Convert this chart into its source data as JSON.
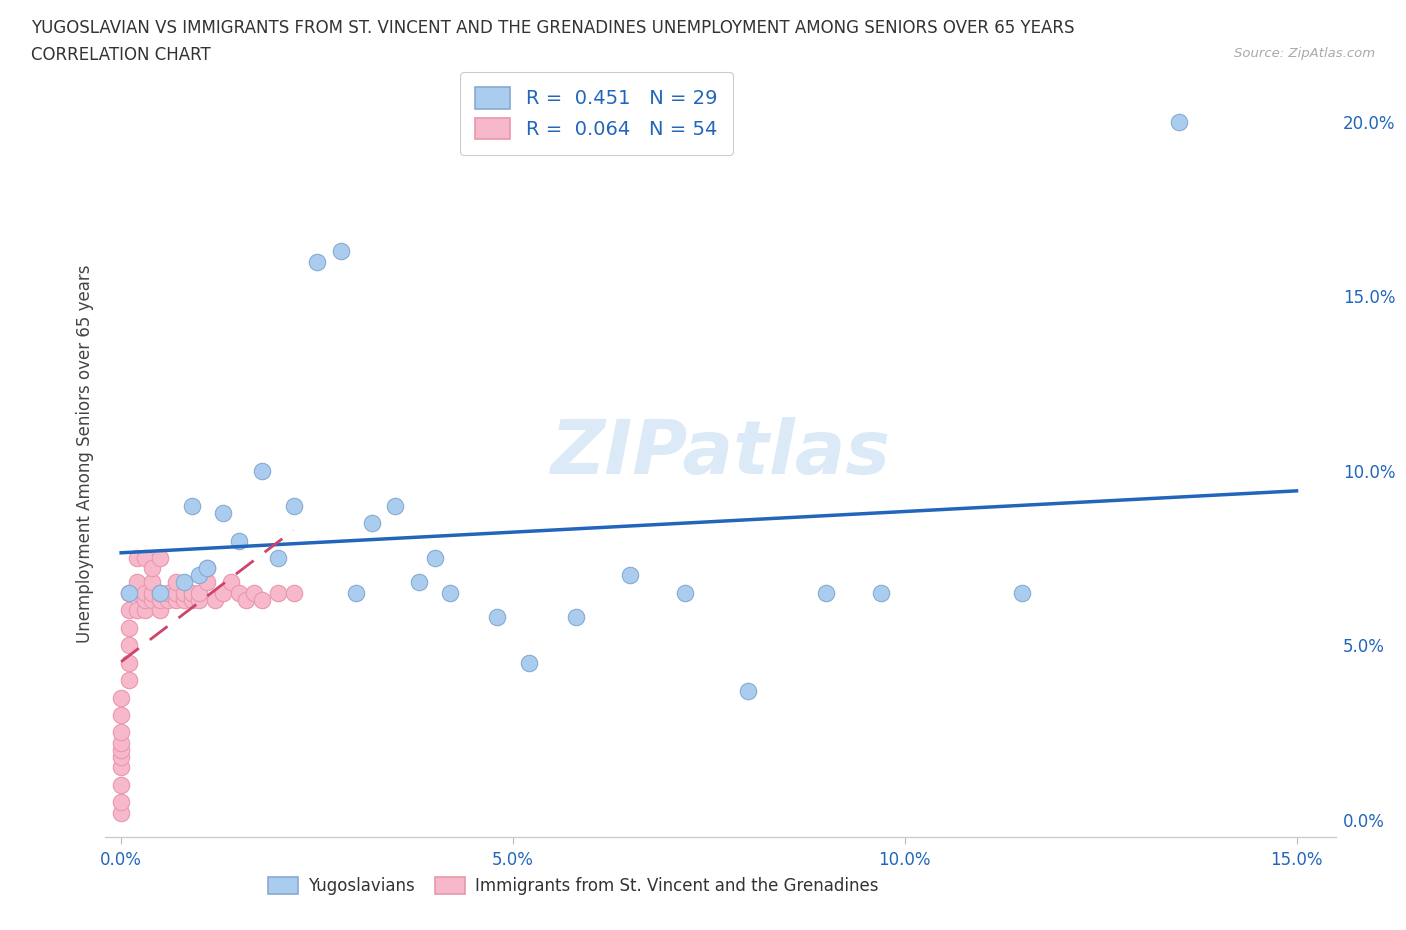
{
  "title_line1": "YUGOSLAVIAN VS IMMIGRANTS FROM ST. VINCENT AND THE GRENADINES UNEMPLOYMENT AMONG SENIORS OVER 65 YEARS",
  "title_line2": "CORRELATION CHART",
  "source": "Source: ZipAtlas.com",
  "ylabel": "Unemployment Among Seniors over 65 years",
  "xlim": [
    -0.002,
    0.155
  ],
  "ylim": [
    -0.005,
    0.215
  ],
  "ytick_vals": [
    0.0,
    0.05,
    0.1,
    0.15,
    0.2
  ],
  "xtick_vals": [
    0.0,
    0.05,
    0.1,
    0.15
  ],
  "yug_r": "0.451",
  "yug_n": "29",
  "svg_r": "0.064",
  "svg_n": "54",
  "yug_dot_color": "#aaccee",
  "yug_edge_color": "#88aad0",
  "svg_dot_color": "#f8b8cc",
  "svg_edge_color": "#e898aa",
  "yug_line_color": "#2266bb",
  "svg_line_color": "#cc4466",
  "watermark": "ZIPatlas",
  "watermark_color": "#c0d8f0",
  "legend1_label": "R =  0.451   N = 29",
  "legend2_label": "R =  0.064   N = 54",
  "bottom_label1": "Yugoslavians",
  "bottom_label2": "Immigrants from St. Vincent and the Grenadines",
  "yug_x": [
    0.001,
    0.005,
    0.008,
    0.009,
    0.01,
    0.011,
    0.013,
    0.015,
    0.018,
    0.02,
    0.022,
    0.025,
    0.028,
    0.03,
    0.032,
    0.035,
    0.038,
    0.04,
    0.042,
    0.048,
    0.052,
    0.058,
    0.065,
    0.072,
    0.08,
    0.09,
    0.097,
    0.115,
    0.135
  ],
  "yug_y": [
    0.065,
    0.065,
    0.068,
    0.09,
    0.07,
    0.072,
    0.088,
    0.08,
    0.1,
    0.075,
    0.09,
    0.16,
    0.163,
    0.065,
    0.085,
    0.09,
    0.068,
    0.075,
    0.065,
    0.058,
    0.045,
    0.058,
    0.07,
    0.065,
    0.037,
    0.065,
    0.065,
    0.065,
    0.2
  ],
  "svg_x": [
    0.0,
    0.0,
    0.0,
    0.0,
    0.0,
    0.0,
    0.0,
    0.0,
    0.0,
    0.0,
    0.001,
    0.001,
    0.001,
    0.001,
    0.001,
    0.001,
    0.002,
    0.002,
    0.002,
    0.002,
    0.003,
    0.003,
    0.003,
    0.003,
    0.004,
    0.004,
    0.004,
    0.004,
    0.005,
    0.005,
    0.005,
    0.005,
    0.006,
    0.006,
    0.007,
    0.007,
    0.007,
    0.008,
    0.008,
    0.009,
    0.009,
    0.01,
    0.01,
    0.011,
    0.011,
    0.012,
    0.013,
    0.014,
    0.015,
    0.016,
    0.017,
    0.018,
    0.02,
    0.022
  ],
  "svg_y": [
    0.002,
    0.005,
    0.01,
    0.015,
    0.018,
    0.02,
    0.022,
    0.025,
    0.03,
    0.035,
    0.04,
    0.045,
    0.05,
    0.055,
    0.06,
    0.065,
    0.06,
    0.065,
    0.068,
    0.075,
    0.06,
    0.063,
    0.065,
    0.075,
    0.063,
    0.065,
    0.068,
    0.072,
    0.06,
    0.063,
    0.065,
    0.075,
    0.063,
    0.065,
    0.063,
    0.065,
    0.068,
    0.063,
    0.065,
    0.063,
    0.065,
    0.063,
    0.065,
    0.068,
    0.072,
    0.063,
    0.065,
    0.068,
    0.065,
    0.063,
    0.065,
    0.063,
    0.065,
    0.065
  ]
}
